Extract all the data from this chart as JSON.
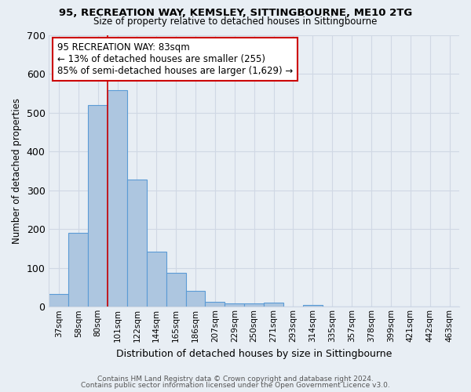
{
  "title1": "95, RECREATION WAY, KEMSLEY, SITTINGBOURNE, ME10 2TG",
  "title2": "Size of property relative to detached houses in Sittingbourne",
  "xlabel": "Distribution of detached houses by size in Sittingbourne",
  "ylabel": "Number of detached properties",
  "bar_labels": [
    "37sqm",
    "58sqm",
    "80sqm",
    "101sqm",
    "122sqm",
    "144sqm",
    "165sqm",
    "186sqm",
    "207sqm",
    "229sqm",
    "250sqm",
    "271sqm",
    "293sqm",
    "314sqm",
    "335sqm",
    "357sqm",
    "378sqm",
    "399sqm",
    "421sqm",
    "442sqm",
    "463sqm"
  ],
  "bar_values": [
    33,
    190,
    520,
    558,
    328,
    142,
    87,
    40,
    13,
    8,
    8,
    10,
    0,
    5,
    0,
    0,
    0,
    0,
    0,
    0,
    0
  ],
  "bar_color": "#adc6e0",
  "bar_edge_color": "#5b9bd5",
  "background_color": "#e8eef4",
  "grid_color": "#d0d8e4",
  "vline_color": "#cc0000",
  "vline_x": 2.5,
  "annotation_text": "95 RECREATION WAY: 83sqm\n← 13% of detached houses are smaller (255)\n85% of semi-detached houses are larger (1,629) →",
  "annotation_box_color": "#ffffff",
  "annotation_box_edge": "#cc0000",
  "ylim": [
    0,
    700
  ],
  "yticks": [
    0,
    100,
    200,
    300,
    400,
    500,
    600,
    700
  ],
  "footer1": "Contains HM Land Registry data © Crown copyright and database right 2024.",
  "footer2": "Contains public sector information licensed under the Open Government Licence v3.0."
}
